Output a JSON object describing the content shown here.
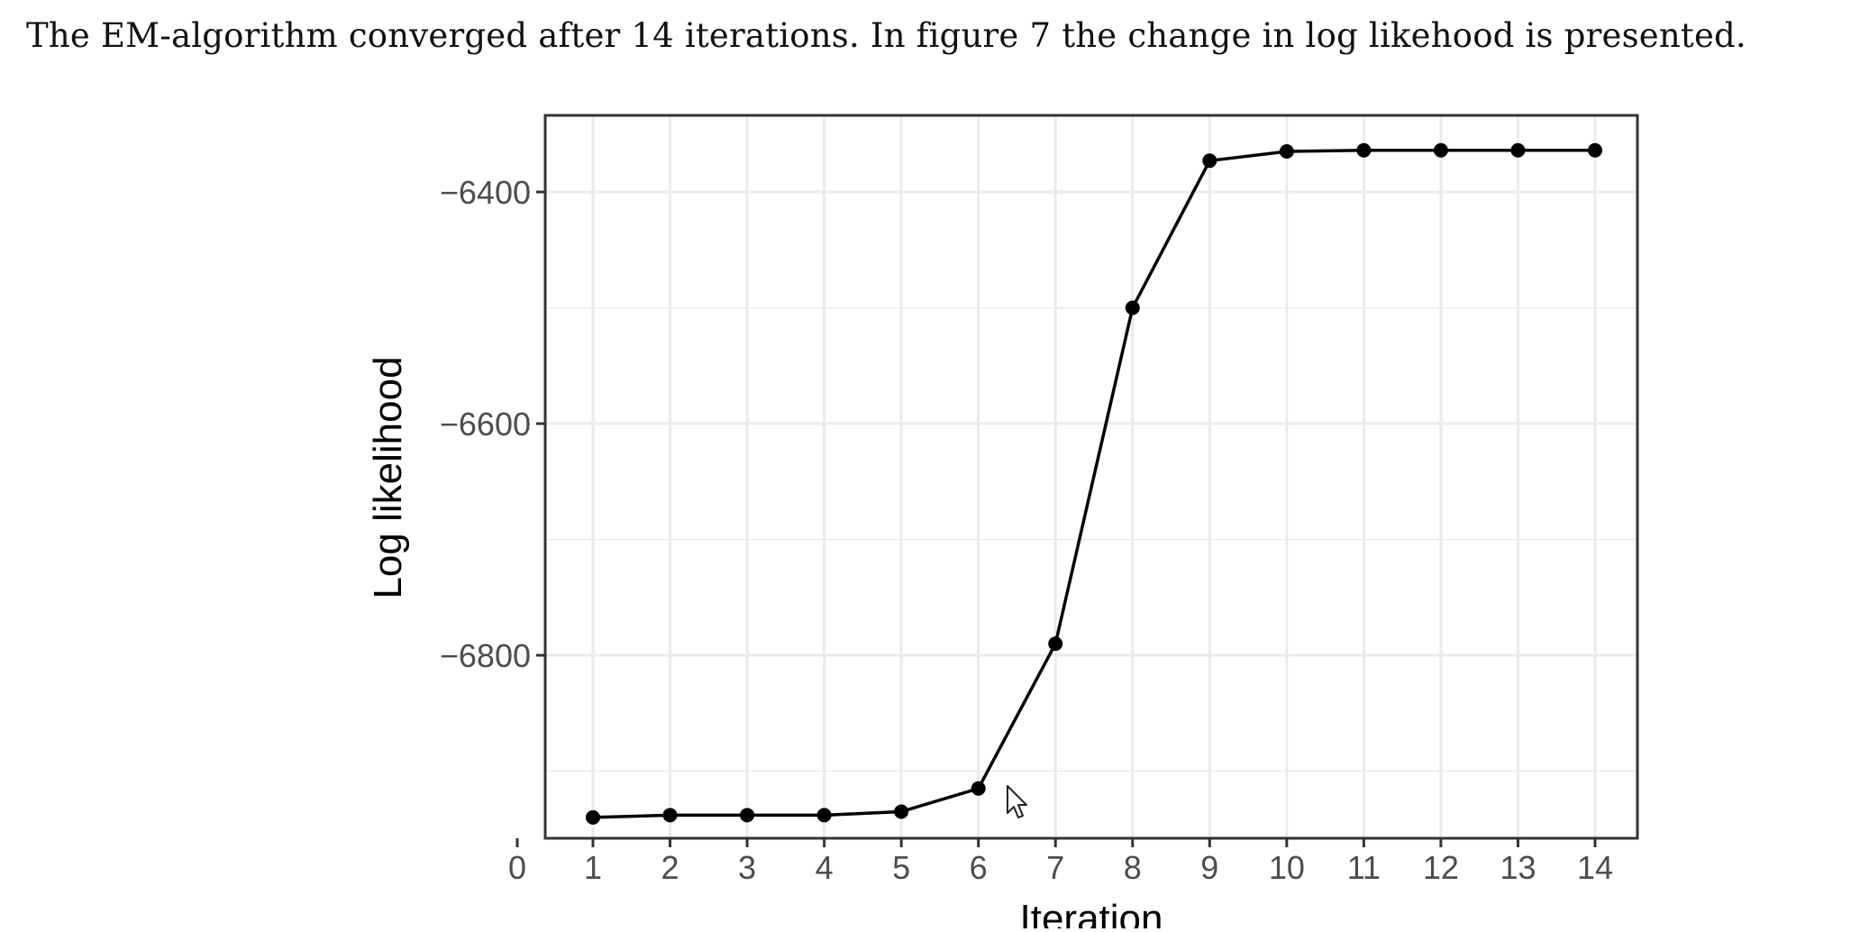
{
  "document": {
    "paragraph": "The EM-algorithm converged after 14 iterations. In figure 7 the change in log likehood is presented."
  },
  "chart_data": {
    "type": "line",
    "xlabel": "Iteration",
    "ylabel": "Log likelihood",
    "x": [
      1,
      2,
      3,
      4,
      5,
      6,
      7,
      8,
      9,
      10,
      11,
      12,
      13,
      14
    ],
    "series": [
      {
        "values": [
          -6940,
          -6938,
          -6938,
          -6938,
          -6935,
          -6915,
          -6790,
          -6500,
          -6373,
          -6365,
          -6364,
          -6364,
          -6364,
          -6364
        ]
      }
    ],
    "xlim": [
      0,
      14
    ],
    "ylim": [
      -6945,
      -6335
    ],
    "xticks": [
      0,
      1,
      2,
      3,
      4,
      5,
      6,
      7,
      8,
      9,
      10,
      11,
      12,
      13,
      14
    ],
    "yticks": [
      -6400,
      -6600,
      -6800
    ],
    "ytick_labels": [
      "−6400",
      "−6600",
      "−6800"
    ],
    "grid": true,
    "legend": "none",
    "colors": {
      "line": "#000000",
      "grid": "#ebebeb",
      "panel_border": "#333333",
      "tick_label": "#4d4d4d"
    }
  },
  "cursor": {
    "icon": "mouse-pointer-icon"
  }
}
